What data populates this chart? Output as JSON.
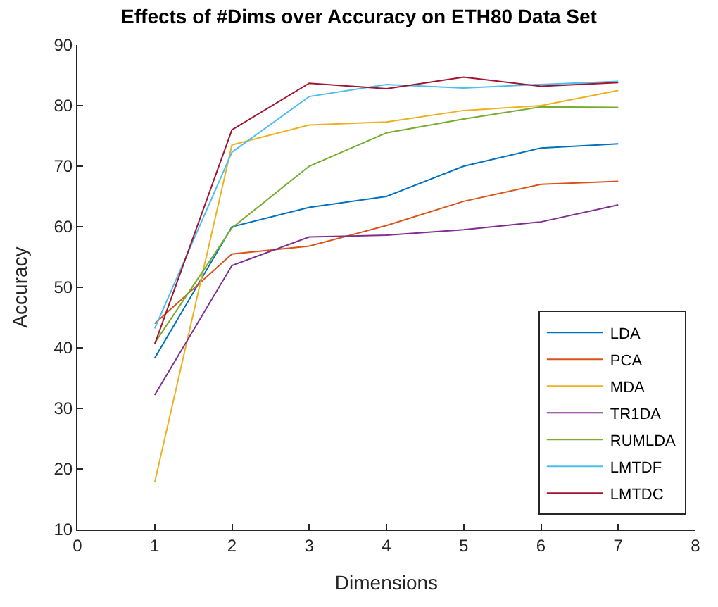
{
  "chart_data": {
    "type": "line",
    "title": "Effects of #Dims over Accuracy on ETH80 Data Set",
    "xlabel": "Dimensions",
    "ylabel": "Accuracy",
    "x": [
      1,
      2,
      3,
      4,
      5,
      6,
      7
    ],
    "xlim": [
      0,
      8
    ],
    "xticks": [
      0,
      1,
      2,
      3,
      4,
      5,
      6,
      7,
      8
    ],
    "ylim": [
      10,
      90
    ],
    "yticks": [
      10,
      20,
      30,
      40,
      50,
      60,
      70,
      80,
      90
    ],
    "legend": "bottom right",
    "marker": "none",
    "line_style": "solid",
    "series": [
      {
        "name": "LDA",
        "color": "#0072bd",
        "values": [
          38.3,
          60,
          63.2,
          65,
          70,
          73,
          73.7
        ]
      },
      {
        "name": "PCA",
        "color": "#d95319",
        "values": [
          44,
          55.5,
          56.8,
          60.2,
          64.2,
          67,
          67.5
        ]
      },
      {
        "name": "MDA",
        "color": "#edb120",
        "values": [
          17.8,
          73.5,
          76.8,
          77.3,
          79.2,
          80,
          82.5
        ]
      },
      {
        "name": "TR1DA",
        "color": "#7e2f8e",
        "values": [
          32.2,
          53.6,
          58.3,
          58.6,
          59.5,
          60.8,
          63.6
        ]
      },
      {
        "name": "RUMLDA",
        "color": "#77ac30",
        "values": [
          40.8,
          59.8,
          70,
          75.5,
          77.8,
          79.8,
          79.7
        ]
      },
      {
        "name": "LMTDF",
        "color": "#4dbeee",
        "values": [
          43.2,
          72.3,
          81.5,
          83.5,
          82.9,
          83.5,
          84
        ]
      },
      {
        "name": "LMTDC",
        "color": "#a2142f",
        "values": [
          40.6,
          76,
          83.7,
          82.8,
          84.7,
          83.2,
          83.8
        ]
      }
    ]
  }
}
